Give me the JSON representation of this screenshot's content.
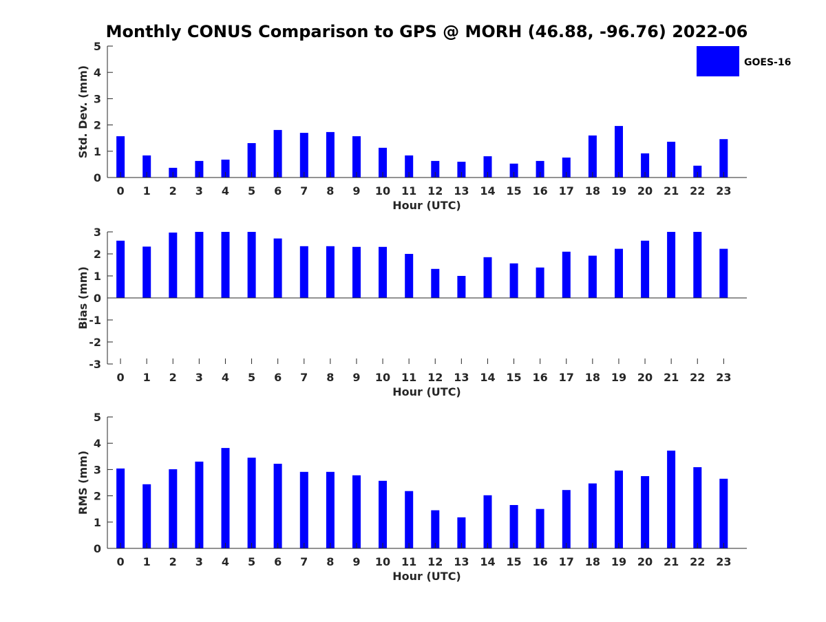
{
  "chart_title": "Monthly CONUS Comparison to GPS @ MORH (46.88, -96.76) 2022-06",
  "legend": {
    "label": "GOES-16",
    "color": "#0000ff"
  },
  "chart_data": [
    {
      "type": "bar",
      "title": "",
      "xlabel": "Hour (UTC)",
      "ylabel": "Std. Dev. (mm)",
      "categories": [
        "0",
        "1",
        "2",
        "3",
        "4",
        "5",
        "6",
        "7",
        "8",
        "9",
        "10",
        "11",
        "12",
        "13",
        "14",
        "15",
        "16",
        "17",
        "18",
        "19",
        "20",
        "21",
        "22",
        "23"
      ],
      "series": [
        {
          "name": "GOES-16",
          "values": [
            1.57,
            0.84,
            0.37,
            0.63,
            0.68,
            1.31,
            1.81,
            1.7,
            1.73,
            1.57,
            1.13,
            0.84,
            0.63,
            0.6,
            0.81,
            0.53,
            0.63,
            0.76,
            1.6,
            1.96,
            0.92,
            1.36,
            0.45,
            1.46
          ]
        }
      ],
      "ylim": [
        0,
        5
      ],
      "yticks": [
        0,
        1,
        2,
        3,
        4,
        5
      ],
      "grid": false,
      "legend_position": "top-right"
    },
    {
      "type": "bar",
      "title": "",
      "xlabel": "Hour (UTC)",
      "ylabel": "Bias (mm)",
      "categories": [
        "0",
        "1",
        "2",
        "3",
        "4",
        "5",
        "6",
        "7",
        "8",
        "9",
        "10",
        "11",
        "12",
        "13",
        "14",
        "15",
        "16",
        "17",
        "18",
        "19",
        "20",
        "21",
        "22",
        "23"
      ],
      "series": [
        {
          "name": "GOES-16",
          "values": [
            2.6,
            2.33,
            2.97,
            3.0,
            3.0,
            3.0,
            2.7,
            2.35,
            2.35,
            2.32,
            2.32,
            2.0,
            1.32,
            1.0,
            1.85,
            1.57,
            1.38,
            2.1,
            1.92,
            2.23,
            2.6,
            3.0,
            3.0,
            2.23
          ]
        }
      ],
      "ylim": [
        -3,
        3
      ],
      "yticks": [
        -3,
        -2,
        -1,
        0,
        1,
        2,
        3
      ],
      "grid": false
    },
    {
      "type": "bar",
      "title": "",
      "xlabel": "Hour (UTC)",
      "ylabel": "RMS (mm)",
      "categories": [
        "0",
        "1",
        "2",
        "3",
        "4",
        "5",
        "6",
        "7",
        "8",
        "9",
        "10",
        "11",
        "12",
        "13",
        "14",
        "15",
        "16",
        "17",
        "18",
        "19",
        "20",
        "21",
        "22",
        "23"
      ],
      "series": [
        {
          "name": "GOES-16",
          "values": [
            3.04,
            2.44,
            3.01,
            3.3,
            3.82,
            3.45,
            3.22,
            2.91,
            2.91,
            2.78,
            2.57,
            2.18,
            1.45,
            1.18,
            2.02,
            1.65,
            1.5,
            2.22,
            2.47,
            2.96,
            2.75,
            3.72,
            3.09,
            2.65
          ]
        }
      ],
      "ylim": [
        0,
        5
      ],
      "yticks": [
        0,
        1,
        2,
        3,
        4,
        5
      ],
      "grid": false
    }
  ]
}
